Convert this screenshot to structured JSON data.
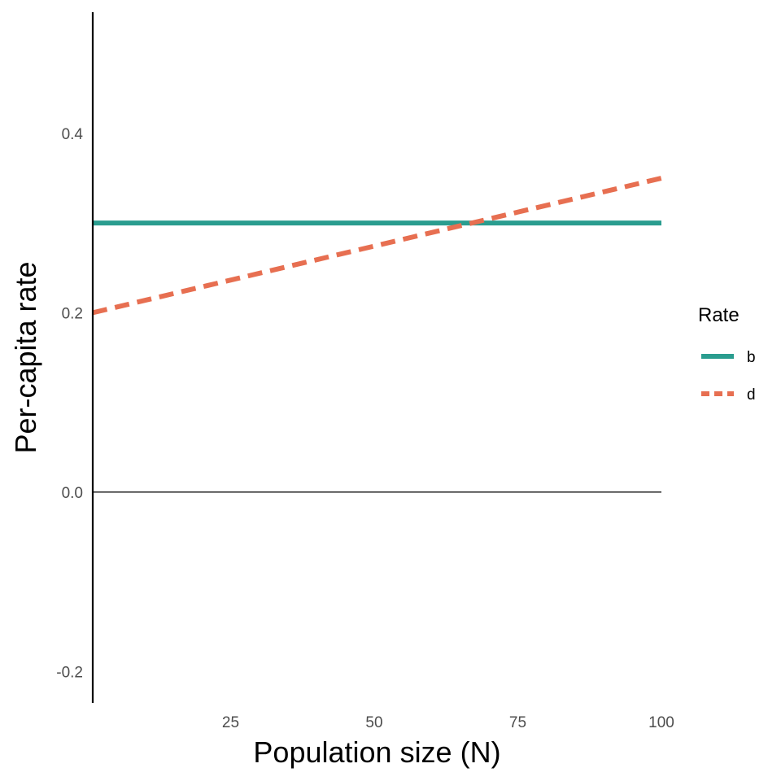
{
  "chart_data": {
    "type": "line",
    "title": "",
    "xlabel": "Population size (N)",
    "ylabel": "Per-capita rate",
    "xlim": [
      1,
      100
    ],
    "ylim": [
      -0.235,
      0.535
    ],
    "x_ticks": [
      25,
      50,
      75,
      100
    ],
    "x_tick_labels": [
      "25",
      "50",
      "75",
      "100"
    ],
    "y_ticks": [
      -0.2,
      0.0,
      0.2,
      0.4
    ],
    "y_tick_labels": [
      "-0.2",
      "0.0",
      "0.2",
      "0.4"
    ],
    "grid": false,
    "reference_lines": [
      {
        "axis": "y",
        "value": 0
      }
    ],
    "legend": {
      "title": "Rate",
      "position": "right"
    },
    "series": [
      {
        "name": "b",
        "color": "#2a9d8f",
        "dash": "solid",
        "x": [
          1,
          100
        ],
        "y": [
          0.3,
          0.3
        ]
      },
      {
        "name": "d",
        "color": "#e76f51",
        "dash": "dashed",
        "x": [
          1,
          100
        ],
        "y": [
          0.2,
          0.35
        ]
      }
    ]
  }
}
